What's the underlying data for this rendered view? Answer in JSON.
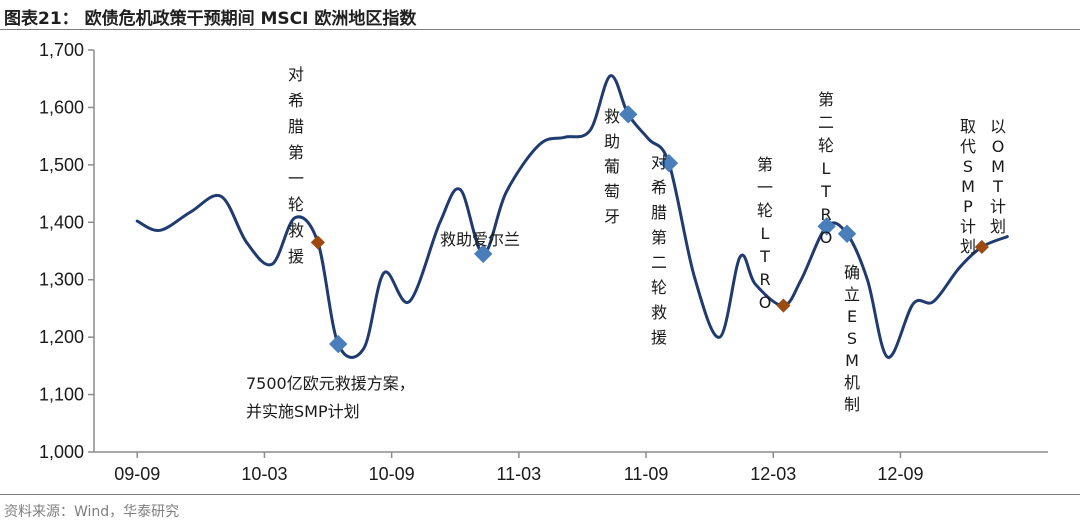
{
  "header": {
    "title": "图表21： 欧债危机政策干预期间 MSCI 欧洲地区指数"
  },
  "footer": {
    "source": "资料来源：Wind，华泰研究"
  },
  "colors": {
    "line": "#1f3b6f",
    "event_square": "#4a7ebb",
    "event_diamond": "#9c4a0f",
    "axis": "#8c8c8c"
  },
  "chart_data": {
    "type": "line",
    "title": "",
    "xlabel": "",
    "ylabel": "",
    "ylim": [
      1000,
      1700
    ],
    "y_ticks": [
      "1,000",
      "1,100",
      "1,200",
      "1,300",
      "1,400",
      "1,500",
      "1,600",
      "1,700"
    ],
    "y_tick_values": [
      1000,
      1100,
      1200,
      1300,
      1400,
      1500,
      1600,
      1700
    ],
    "x_ticks": [
      "09-09",
      "10-03",
      "10-09",
      "11-03",
      "11-09",
      "12-03",
      "12-09"
    ],
    "grid": false,
    "series": [
      {
        "values": [
          [
            2009.67,
            1402
          ],
          [
            2009.76,
            1386
          ],
          [
            2009.88,
            1418
          ],
          [
            2010.0,
            1445
          ],
          [
            2010.1,
            1365
          ],
          [
            2010.2,
            1327
          ],
          [
            2010.29,
            1408
          ],
          [
            2010.38,
            1365
          ],
          [
            2010.46,
            1188
          ],
          [
            2010.56,
            1180
          ],
          [
            2010.64,
            1312
          ],
          [
            2010.74,
            1262
          ],
          [
            2010.86,
            1400
          ],
          [
            2010.94,
            1457
          ],
          [
            2011.03,
            1345
          ],
          [
            2011.12,
            1452
          ],
          [
            2011.25,
            1535
          ],
          [
            2011.35,
            1548
          ],
          [
            2011.45,
            1560
          ],
          [
            2011.53,
            1655
          ],
          [
            2011.6,
            1588
          ],
          [
            2011.68,
            1545
          ],
          [
            2011.76,
            1503
          ],
          [
            2011.86,
            1305
          ],
          [
            2011.96,
            1200
          ],
          [
            2012.04,
            1340
          ],
          [
            2012.1,
            1292
          ],
          [
            2012.21,
            1255
          ],
          [
            2012.28,
            1300
          ],
          [
            2012.38,
            1393
          ],
          [
            2012.46,
            1380
          ],
          [
            2012.54,
            1300
          ],
          [
            2012.62,
            1165
          ],
          [
            2012.72,
            1258
          ],
          [
            2012.8,
            1262
          ],
          [
            2012.9,
            1320
          ],
          [
            2012.99,
            1357
          ],
          [
            2013.09,
            1375
          ]
        ]
      }
    ],
    "events": [
      {
        "t": 2010.38,
        "v": 1365,
        "marker": "diamond",
        "label": "对希腊第一轮救援"
      },
      {
        "t": 2010.46,
        "v": 1188,
        "marker": "square",
        "label_lines": [
          "7500亿欧元救援方案，",
          "并实施SMP计划"
        ]
      },
      {
        "t": 2011.03,
        "v": 1345,
        "marker": "square",
        "label": "救助爱尔兰"
      },
      {
        "t": 2011.6,
        "v": 1588,
        "marker": "square",
        "label": "救助葡萄牙"
      },
      {
        "t": 2011.76,
        "v": 1503,
        "marker": "square",
        "label": "对希腊第二轮救援"
      },
      {
        "t": 2012.21,
        "v": 1255,
        "marker": "diamond",
        "label": "第一轮LTRO"
      },
      {
        "t": 2012.38,
        "v": 1393,
        "marker": "square",
        "label": "第二轮LTRO"
      },
      {
        "t": 2012.46,
        "v": 1380,
        "marker": "square",
        "label": "确立ESM机制"
      },
      {
        "t": 2012.99,
        "v": 1357,
        "marker": "diamond",
        "label_cols": [
          "以OMT计划",
          "取代SMP计划"
        ]
      }
    ]
  }
}
